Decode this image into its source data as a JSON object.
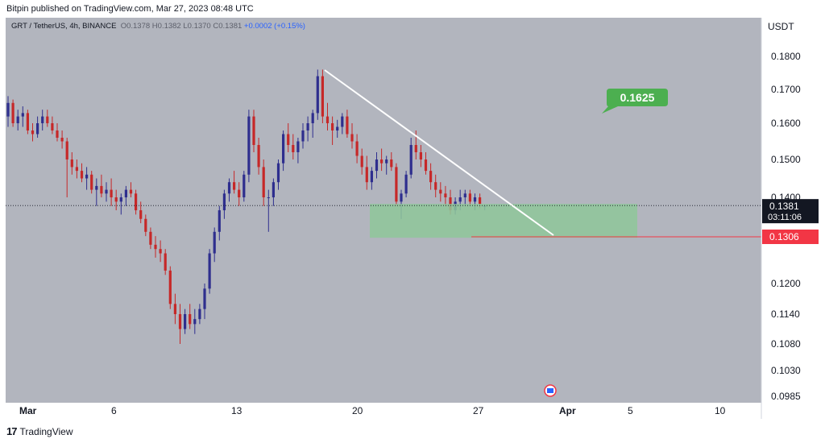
{
  "header": {
    "publisher_text": "Bitpin published on TradingView.com, Mar 27, 2023 08:48 UTC"
  },
  "symbol_info": {
    "symbol": "GRT / TetherUS, 4h, BINANCE",
    "open": "O0.1378",
    "high": "H0.1382",
    "low": "L0.1370",
    "close": "C0.1381",
    "change": "+0.0002 (+0.15%)"
  },
  "footer": {
    "brand": "TradingView",
    "logo_glyph": "17"
  },
  "chart_data": {
    "type": "candlestick",
    "currency_label": "USDT",
    "y_ticks": [
      "0.1800",
      "0.1700",
      "0.1600",
      "0.1500",
      "0.1400",
      "0.1200",
      "0.1140",
      "0.1080",
      "0.1030",
      "0.0985"
    ],
    "x_ticks": [
      "Mar",
      "6",
      "13",
      "20",
      "27",
      "Apr",
      "5",
      "10"
    ],
    "current_price": "0.1381",
    "countdown": "03:11:06",
    "support_price": "0.1306",
    "target_price": "0.1625",
    "colors": {
      "background": "#b2b5be",
      "bullish": "#2e2e8e",
      "bearish": "#c62828",
      "target_bg": "#4caf50",
      "zone_fill": "#8ec79a",
      "support_line": "#f23645",
      "trendline": "#ffffff"
    },
    "candles": [
      [
        0.162,
        0.168,
        0.159,
        0.166
      ],
      [
        0.166,
        0.167,
        0.159,
        0.16
      ],
      [
        0.16,
        0.164,
        0.158,
        0.162
      ],
      [
        0.162,
        0.165,
        0.159,
        0.163
      ],
      [
        0.163,
        0.164,
        0.157,
        0.158
      ],
      [
        0.158,
        0.16,
        0.155,
        0.157
      ],
      [
        0.157,
        0.162,
        0.156,
        0.16
      ],
      [
        0.16,
        0.164,
        0.158,
        0.162
      ],
      [
        0.162,
        0.164,
        0.159,
        0.16
      ],
      [
        0.16,
        0.162,
        0.157,
        0.158
      ],
      [
        0.158,
        0.16,
        0.155,
        0.156
      ],
      [
        0.156,
        0.158,
        0.153,
        0.155
      ],
      [
        0.155,
        0.156,
        0.14,
        0.15
      ],
      [
        0.15,
        0.152,
        0.146,
        0.148
      ],
      [
        0.148,
        0.15,
        0.145,
        0.147
      ],
      [
        0.147,
        0.149,
        0.144,
        0.145
      ],
      [
        0.145,
        0.148,
        0.142,
        0.146
      ],
      [
        0.146,
        0.147,
        0.141,
        0.142
      ],
      [
        0.142,
        0.145,
        0.138,
        0.143
      ],
      [
        0.143,
        0.146,
        0.14,
        0.141
      ],
      [
        0.141,
        0.144,
        0.139,
        0.142
      ],
      [
        0.142,
        0.145,
        0.138,
        0.14
      ],
      [
        0.14,
        0.142,
        0.137,
        0.139
      ],
      [
        0.139,
        0.141,
        0.136,
        0.14
      ],
      [
        0.14,
        0.143,
        0.138,
        0.142
      ],
      [
        0.142,
        0.144,
        0.14,
        0.141
      ],
      [
        0.141,
        0.142,
        0.136,
        0.137
      ],
      [
        0.137,
        0.139,
        0.134,
        0.135
      ],
      [
        0.135,
        0.136,
        0.131,
        0.132
      ],
      [
        0.132,
        0.133,
        0.128,
        0.129
      ],
      [
        0.129,
        0.131,
        0.126,
        0.128
      ],
      [
        0.128,
        0.13,
        0.125,
        0.127
      ],
      [
        0.127,
        0.128,
        0.122,
        0.123
      ],
      [
        0.123,
        0.124,
        0.115,
        0.116
      ],
      [
        0.116,
        0.118,
        0.112,
        0.114
      ],
      [
        0.114,
        0.116,
        0.108,
        0.111
      ],
      [
        0.111,
        0.115,
        0.11,
        0.114
      ],
      [
        0.114,
        0.116,
        0.111,
        0.112
      ],
      [
        0.112,
        0.115,
        0.11,
        0.113
      ],
      [
        0.113,
        0.116,
        0.112,
        0.115
      ],
      [
        0.115,
        0.12,
        0.113,
        0.119
      ],
      [
        0.119,
        0.128,
        0.118,
        0.127
      ],
      [
        0.127,
        0.133,
        0.125,
        0.132
      ],
      [
        0.132,
        0.138,
        0.13,
        0.137
      ],
      [
        0.137,
        0.142,
        0.135,
        0.141
      ],
      [
        0.141,
        0.145,
        0.139,
        0.144
      ],
      [
        0.144,
        0.147,
        0.141,
        0.142
      ],
      [
        0.142,
        0.144,
        0.138,
        0.14
      ],
      [
        0.14,
        0.147,
        0.139,
        0.146
      ],
      [
        0.146,
        0.164,
        0.144,
        0.162
      ],
      [
        0.162,
        0.164,
        0.152,
        0.154
      ],
      [
        0.154,
        0.156,
        0.146,
        0.148
      ],
      [
        0.148,
        0.15,
        0.138,
        0.14
      ],
      [
        0.14,
        0.142,
        0.132,
        0.14
      ],
      [
        0.14,
        0.145,
        0.138,
        0.144
      ],
      [
        0.144,
        0.15,
        0.142,
        0.149
      ],
      [
        0.149,
        0.158,
        0.147,
        0.157
      ],
      [
        0.157,
        0.16,
        0.152,
        0.154
      ],
      [
        0.154,
        0.157,
        0.15,
        0.152
      ],
      [
        0.152,
        0.156,
        0.149,
        0.155
      ],
      [
        0.155,
        0.16,
        0.153,
        0.158
      ],
      [
        0.158,
        0.162,
        0.155,
        0.16
      ],
      [
        0.16,
        0.164,
        0.156,
        0.163
      ],
      [
        0.163,
        0.176,
        0.161,
        0.174
      ],
      [
        0.174,
        0.176,
        0.16,
        0.162
      ],
      [
        0.162,
        0.166,
        0.158,
        0.16
      ],
      [
        0.16,
        0.162,
        0.154,
        0.158
      ],
      [
        0.158,
        0.161,
        0.156,
        0.159
      ],
      [
        0.159,
        0.163,
        0.157,
        0.162
      ],
      [
        0.162,
        0.164,
        0.156,
        0.157
      ],
      [
        0.157,
        0.16,
        0.153,
        0.155
      ],
      [
        0.155,
        0.157,
        0.149,
        0.151
      ],
      [
        0.151,
        0.153,
        0.146,
        0.148
      ],
      [
        0.148,
        0.151,
        0.142,
        0.144
      ],
      [
        0.144,
        0.148,
        0.142,
        0.147
      ],
      [
        0.147,
        0.152,
        0.145,
        0.15
      ],
      [
        0.15,
        0.153,
        0.147,
        0.149
      ],
      [
        0.149,
        0.151,
        0.146,
        0.15
      ],
      [
        0.15,
        0.152,
        0.147,
        0.148
      ],
      [
        0.148,
        0.149,
        0.138,
        0.139
      ],
      [
        0.139,
        0.142,
        0.135,
        0.141
      ],
      [
        0.141,
        0.147,
        0.14,
        0.146
      ],
      [
        0.146,
        0.156,
        0.145,
        0.154
      ],
      [
        0.154,
        0.158,
        0.15,
        0.152
      ],
      [
        0.152,
        0.154,
        0.148,
        0.15
      ],
      [
        0.15,
        0.152,
        0.146,
        0.147
      ],
      [
        0.147,
        0.149,
        0.142,
        0.144
      ],
      [
        0.144,
        0.146,
        0.14,
        0.142
      ],
      [
        0.142,
        0.144,
        0.139,
        0.141
      ],
      [
        0.141,
        0.143,
        0.138,
        0.14
      ],
      [
        0.14,
        0.142,
        0.136,
        0.137
      ],
      [
        0.137,
        0.14,
        0.136,
        0.139
      ],
      [
        0.139,
        0.142,
        0.137,
        0.14
      ],
      [
        0.14,
        0.142,
        0.138,
        0.141
      ],
      [
        0.141,
        0.142,
        0.138,
        0.139
      ],
      [
        0.139,
        0.141,
        0.137,
        0.14
      ],
      [
        0.14,
        0.141,
        0.1375,
        0.1385
      ],
      [
        0.1378,
        0.1382,
        0.137,
        0.1381
      ]
    ]
  }
}
